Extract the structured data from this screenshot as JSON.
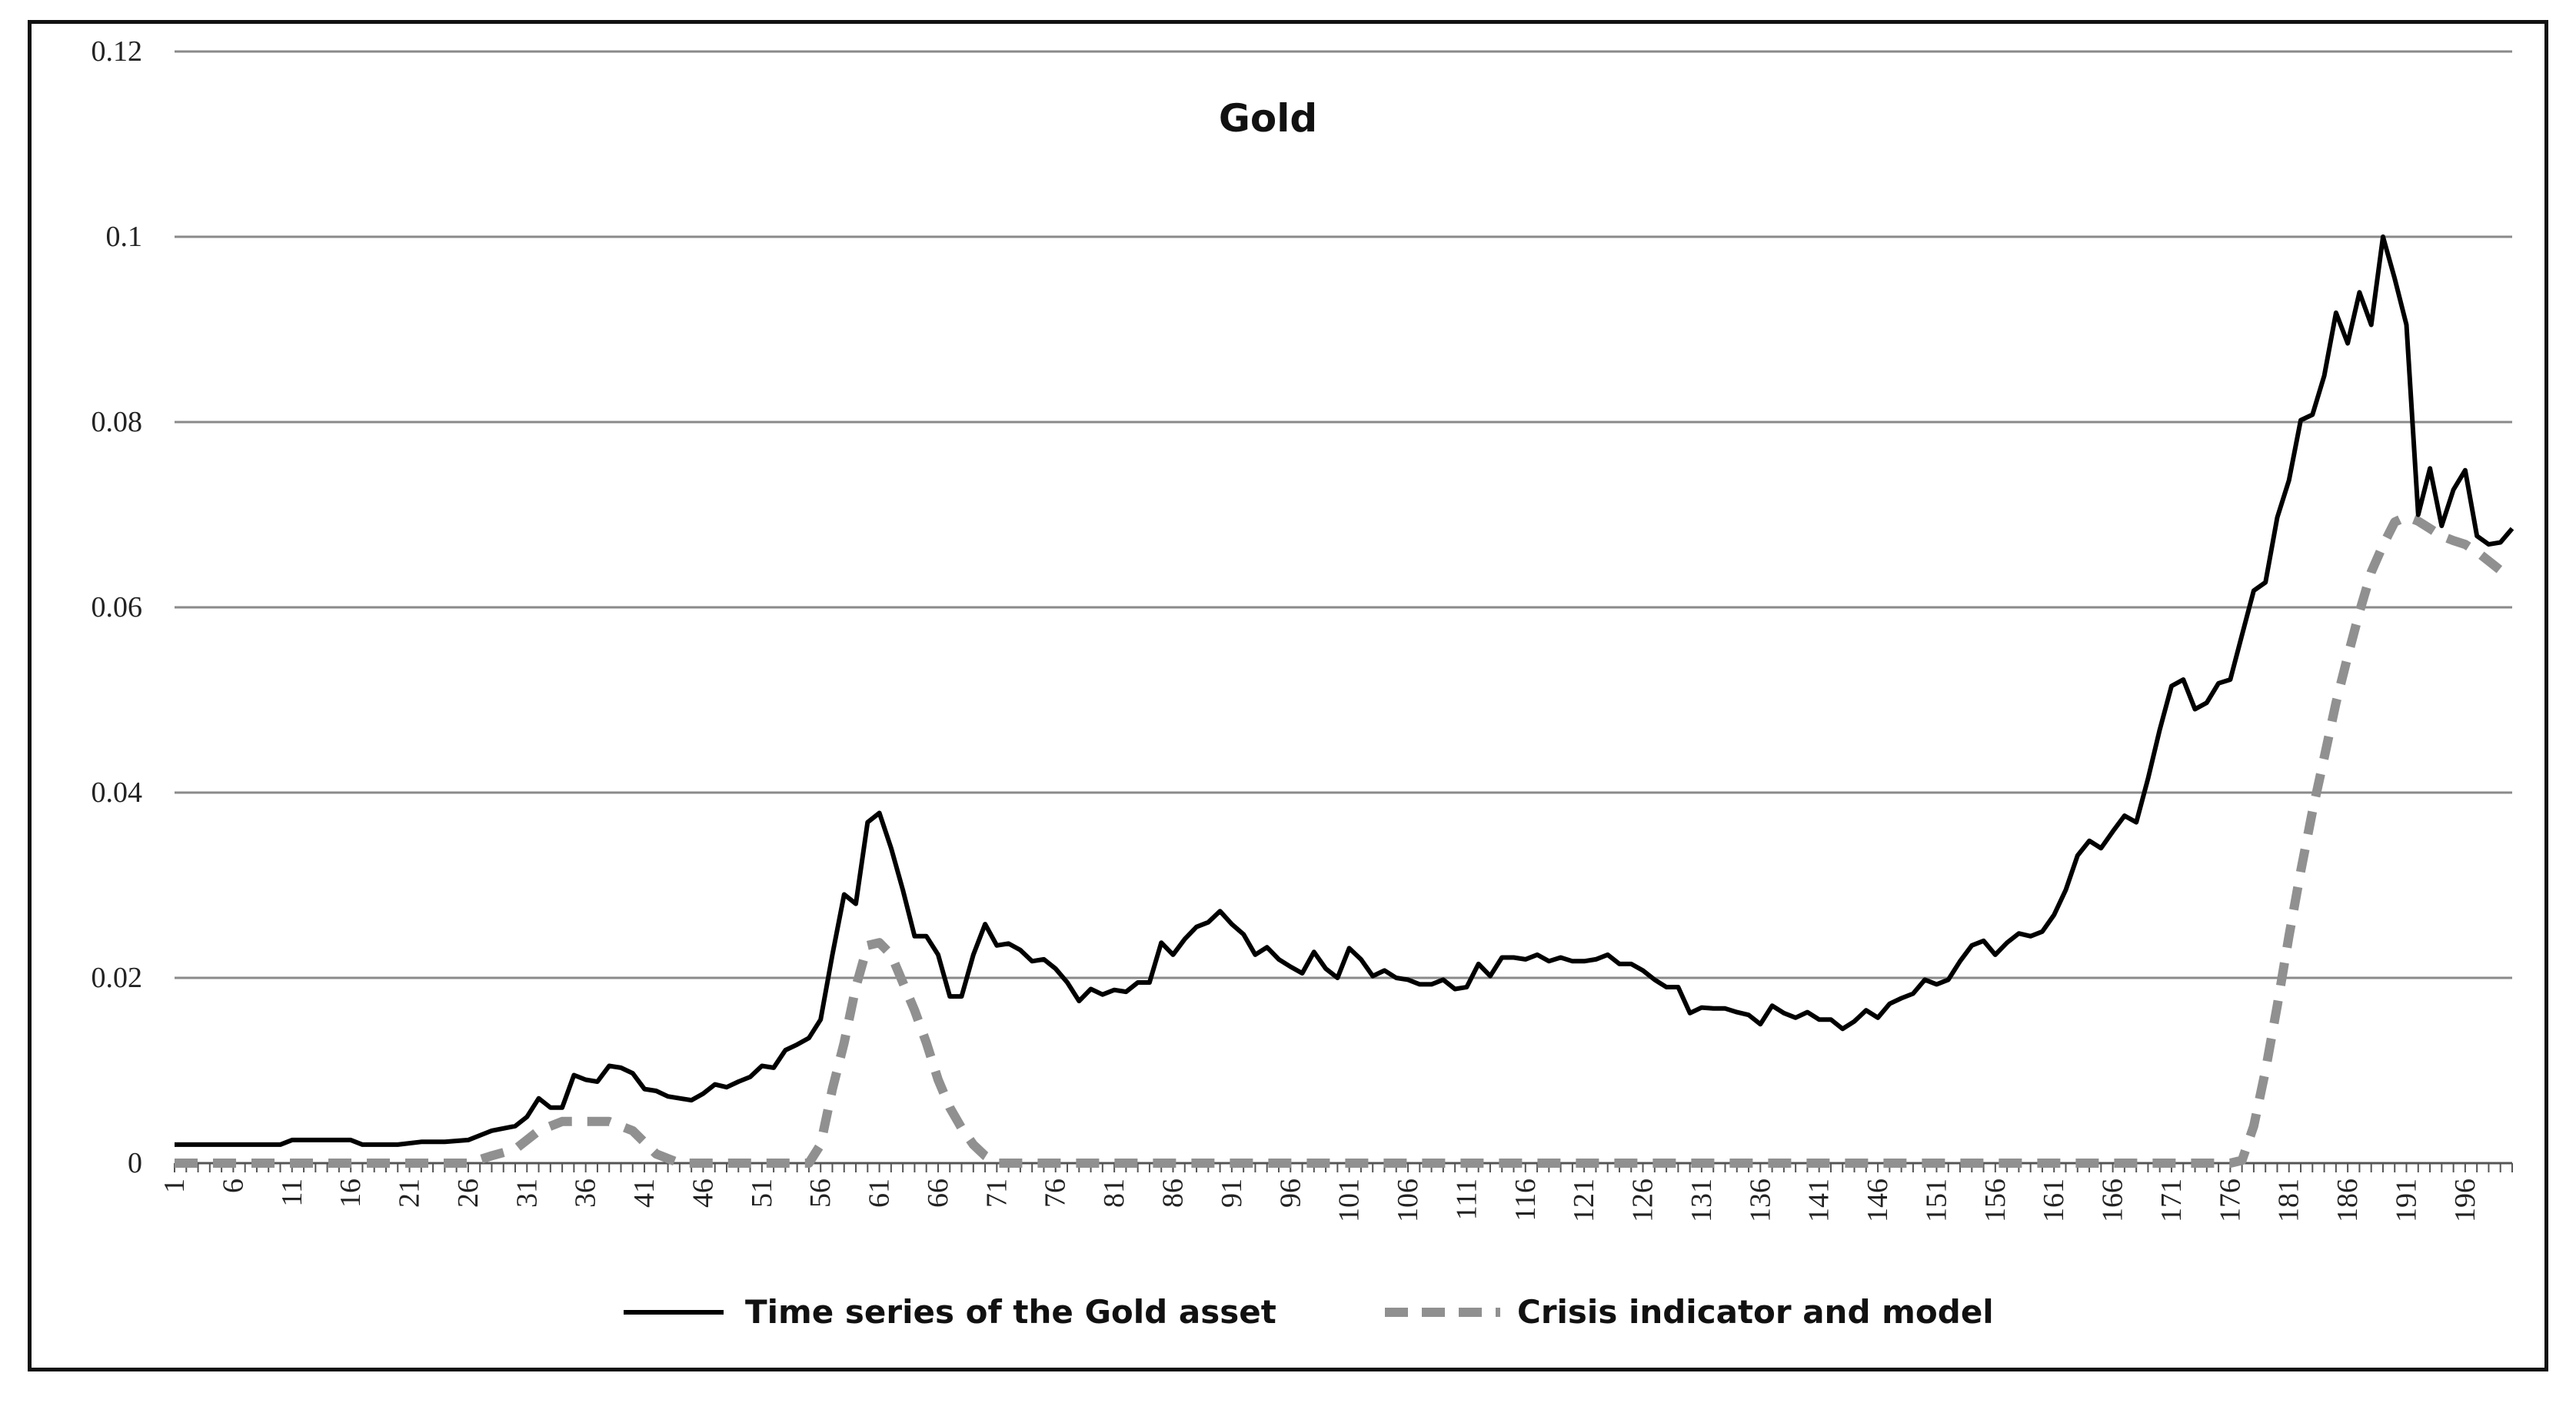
{
  "chart_data": {
    "type": "line",
    "title": "Gold",
    "xlabel": "",
    "ylabel": "",
    "ylim": [
      0,
      0.12
    ],
    "yticks": [
      "0",
      "0.02",
      "0.04",
      "0.06",
      "0.08",
      "0.1",
      "0.12"
    ],
    "xlim": [
      1,
      200
    ],
    "xtick_labels": [
      "1",
      "6",
      "11",
      "16",
      "21",
      "26",
      "31",
      "36",
      "41",
      "46",
      "51",
      "56",
      "61",
      "66",
      "71",
      "76",
      "81",
      "86",
      "91",
      "96",
      "101",
      "106",
      "111",
      "116",
      "121",
      "126",
      "131",
      "136",
      "141",
      "146",
      "151",
      "156",
      "161",
      "166",
      "171",
      "176",
      "181",
      "186",
      "191",
      "196"
    ],
    "legend_position": "bottom-center",
    "series": [
      {
        "name": "Time series of the Gold asset",
        "color": "#000000",
        "style": "solid",
        "points": [
          [
            1,
            0.002
          ],
          [
            10,
            0.002
          ],
          [
            11,
            0.0025
          ],
          [
            16,
            0.0025
          ],
          [
            17,
            0.002
          ],
          [
            20,
            0.002
          ],
          [
            22,
            0.0023
          ],
          [
            24,
            0.0023
          ],
          [
            26,
            0.0025
          ],
          [
            28,
            0.0035
          ],
          [
            30,
            0.004
          ],
          [
            31,
            0.005
          ],
          [
            32,
            0.007
          ],
          [
            33,
            0.006
          ],
          [
            34,
            0.006
          ],
          [
            35,
            0.0095
          ],
          [
            36,
            0.009
          ],
          [
            37,
            0.0088
          ],
          [
            38,
            0.0105
          ],
          [
            39,
            0.0103
          ],
          [
            40,
            0.0097
          ],
          [
            41,
            0.008
          ],
          [
            42,
            0.0078
          ],
          [
            43,
            0.0072
          ],
          [
            44,
            0.007
          ],
          [
            45,
            0.0068
          ],
          [
            46,
            0.0075
          ],
          [
            47,
            0.0085
          ],
          [
            48,
            0.0082
          ],
          [
            49,
            0.0088
          ],
          [
            50,
            0.0093
          ],
          [
            51,
            0.0105
          ],
          [
            52,
            0.0103
          ],
          [
            53,
            0.0122
          ],
          [
            54,
            0.0128
          ],
          [
            55,
            0.0135
          ],
          [
            56,
            0.0155
          ],
          [
            57,
            0.0225
          ],
          [
            58,
            0.029
          ],
          [
            59,
            0.028
          ],
          [
            60,
            0.0368
          ],
          [
            61,
            0.0378
          ],
          [
            62,
            0.034
          ],
          [
            63,
            0.0295
          ],
          [
            64,
            0.0245
          ],
          [
            65,
            0.0245
          ],
          [
            66,
            0.0225
          ],
          [
            67,
            0.018
          ],
          [
            68,
            0.018
          ],
          [
            69,
            0.0225
          ],
          [
            70,
            0.0258
          ],
          [
            71,
            0.0235
          ],
          [
            72,
            0.0237
          ],
          [
            73,
            0.023
          ],
          [
            74,
            0.0218
          ],
          [
            75,
            0.022
          ],
          [
            76,
            0.021
          ],
          [
            77,
            0.0195
          ],
          [
            78,
            0.0175
          ],
          [
            79,
            0.0188
          ],
          [
            80,
            0.0182
          ],
          [
            81,
            0.0187
          ],
          [
            82,
            0.0185
          ],
          [
            83,
            0.0195
          ],
          [
            84,
            0.0195
          ],
          [
            85,
            0.0238
          ],
          [
            86,
            0.0225
          ],
          [
            87,
            0.0242
          ],
          [
            88,
            0.0255
          ],
          [
            89,
            0.026
          ],
          [
            90,
            0.0272
          ],
          [
            91,
            0.0258
          ],
          [
            92,
            0.0247
          ],
          [
            93,
            0.0225
          ],
          [
            94,
            0.0233
          ],
          [
            95,
            0.022
          ],
          [
            96,
            0.0212
          ],
          [
            97,
            0.0205
          ],
          [
            98,
            0.0228
          ],
          [
            99,
            0.021
          ],
          [
            100,
            0.02
          ],
          [
            101,
            0.0232
          ],
          [
            102,
            0.022
          ],
          [
            103,
            0.0202
          ],
          [
            104,
            0.0208
          ],
          [
            105,
            0.02
          ],
          [
            106,
            0.0198
          ],
          [
            107,
            0.0193
          ],
          [
            108,
            0.0193
          ],
          [
            109,
            0.0198
          ],
          [
            110,
            0.0188
          ],
          [
            111,
            0.019
          ],
          [
            112,
            0.0215
          ],
          [
            113,
            0.0202
          ],
          [
            114,
            0.0222
          ],
          [
            115,
            0.0222
          ],
          [
            116,
            0.022
          ],
          [
            117,
            0.0225
          ],
          [
            118,
            0.0218
          ],
          [
            119,
            0.0222
          ],
          [
            120,
            0.0218
          ],
          [
            121,
            0.0218
          ],
          [
            122,
            0.022
          ],
          [
            123,
            0.0225
          ],
          [
            124,
            0.0215
          ],
          [
            125,
            0.0215
          ],
          [
            126,
            0.0208
          ],
          [
            127,
            0.0198
          ],
          [
            128,
            0.019
          ],
          [
            129,
            0.019
          ],
          [
            130,
            0.0162
          ],
          [
            131,
            0.0168
          ],
          [
            132,
            0.0167
          ],
          [
            133,
            0.0167
          ],
          [
            134,
            0.0163
          ],
          [
            135,
            0.016
          ],
          [
            136,
            0.015
          ],
          [
            137,
            0.017
          ],
          [
            138,
            0.0162
          ],
          [
            139,
            0.0157
          ],
          [
            140,
            0.0163
          ],
          [
            141,
            0.0155
          ],
          [
            142,
            0.0155
          ],
          [
            143,
            0.0145
          ],
          [
            144,
            0.0153
          ],
          [
            145,
            0.0165
          ],
          [
            146,
            0.0157
          ],
          [
            147,
            0.0172
          ],
          [
            148,
            0.0178
          ],
          [
            149,
            0.0183
          ],
          [
            150,
            0.0198
          ],
          [
            151,
            0.0193
          ],
          [
            152,
            0.0198
          ],
          [
            153,
            0.0218
          ],
          [
            154,
            0.0235
          ],
          [
            155,
            0.024
          ],
          [
            156,
            0.0225
          ],
          [
            157,
            0.0238
          ],
          [
            158,
            0.0248
          ],
          [
            159,
            0.0245
          ],
          [
            160,
            0.025
          ],
          [
            161,
            0.0268
          ],
          [
            162,
            0.0295
          ],
          [
            163,
            0.0332
          ],
          [
            164,
            0.0348
          ],
          [
            165,
            0.034
          ],
          [
            166,
            0.0358
          ],
          [
            167,
            0.0375
          ],
          [
            168,
            0.0368
          ],
          [
            169,
            0.0415
          ],
          [
            170,
            0.0468
          ],
          [
            171,
            0.0515
          ],
          [
            172,
            0.0522
          ],
          [
            173,
            0.049
          ],
          [
            174,
            0.0497
          ],
          [
            175,
            0.0518
          ],
          [
            176,
            0.0522
          ],
          [
            177,
            0.057
          ],
          [
            178,
            0.0618
          ],
          [
            179,
            0.0627
          ],
          [
            180,
            0.0697
          ],
          [
            181,
            0.0737
          ],
          [
            182,
            0.0802
          ],
          [
            183,
            0.0808
          ],
          [
            184,
            0.085
          ],
          [
            185,
            0.0918
          ],
          [
            186,
            0.0885
          ],
          [
            187,
            0.094
          ],
          [
            188,
            0.0905
          ],
          [
            189,
            0.1
          ],
          [
            190,
            0.0955
          ],
          [
            191,
            0.0905
          ],
          [
            192,
            0.07
          ],
          [
            193,
            0.075
          ],
          [
            194,
            0.0688
          ],
          [
            195,
            0.0727
          ],
          [
            196,
            0.0748
          ],
          [
            197,
            0.0677
          ],
          [
            198,
            0.0668
          ],
          [
            199,
            0.067
          ],
          [
            200,
            0.0685
          ]
        ]
      },
      {
        "name": "Crisis indicator and model",
        "color": "#909090",
        "style": "dashed",
        "points": [
          [
            1,
            0
          ],
          [
            26,
            0
          ],
          [
            28,
            0.0008
          ],
          [
            30,
            0.0015
          ],
          [
            32,
            0.0035
          ],
          [
            34,
            0.0045
          ],
          [
            36,
            0.0045
          ],
          [
            38,
            0.0045
          ],
          [
            40,
            0.0035
          ],
          [
            42,
            0.001
          ],
          [
            44,
            0
          ],
          [
            55,
            0
          ],
          [
            56,
            0.002
          ],
          [
            57,
            0.008
          ],
          [
            58,
            0.013
          ],
          [
            59,
            0.019
          ],
          [
            60,
            0.0235
          ],
          [
            61,
            0.0238
          ],
          [
            62,
            0.0225
          ],
          [
            63,
            0.0195
          ],
          [
            64,
            0.0165
          ],
          [
            65,
            0.013
          ],
          [
            66,
            0.009
          ],
          [
            67,
            0.006
          ],
          [
            68,
            0.0038
          ],
          [
            69,
            0.002
          ],
          [
            70,
            0.0008
          ],
          [
            71,
            0
          ],
          [
            176,
            0
          ],
          [
            177,
            0.0003
          ],
          [
            178,
            0.004
          ],
          [
            179,
            0.01
          ],
          [
            180,
            0.017
          ],
          [
            181,
            0.0245
          ],
          [
            182,
            0.0315
          ],
          [
            183,
            0.038
          ],
          [
            184,
            0.0438
          ],
          [
            185,
            0.0497
          ],
          [
            186,
            0.0547
          ],
          [
            187,
            0.0595
          ],
          [
            188,
            0.0638
          ],
          [
            189,
            0.0667
          ],
          [
            190,
            0.0692
          ],
          [
            191,
            0.0698
          ],
          [
            192,
            0.0693
          ],
          [
            193,
            0.0685
          ],
          [
            194,
            0.0677
          ],
          [
            195,
            0.0672
          ],
          [
            196,
            0.0668
          ],
          [
            197,
            0.066
          ],
          [
            198,
            0.065
          ],
          [
            199,
            0.064
          ],
          [
            200,
            0.0632
          ]
        ]
      }
    ]
  }
}
